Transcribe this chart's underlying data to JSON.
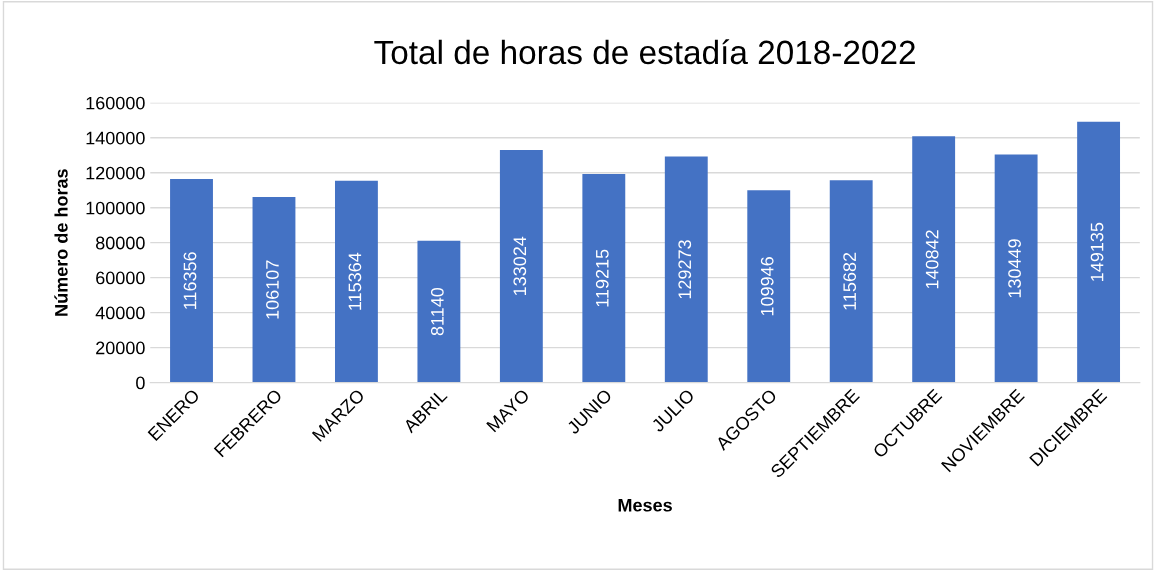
{
  "chart_data": {
    "type": "bar",
    "title": "Total de horas de estadía 2018-2022",
    "xlabel": "Meses",
    "ylabel": "Número de horas",
    "categories": [
      "ENERO",
      "FEBRERO",
      "MARZO",
      "ABRIL",
      "MAYO",
      "JUNIO",
      "JULIO",
      "AGOSTO",
      "SEPTIEMBRE",
      "OCTUBRE",
      "NOVIEMBRE",
      "DICIEMBRE"
    ],
    "values": [
      116356,
      106107,
      115364,
      81140,
      133024,
      119215,
      129273,
      109946,
      115682,
      140842,
      130449,
      149135
    ],
    "color": "#4472c4",
    "ylim": [
      0,
      160000
    ],
    "yticks": [
      0,
      20000,
      40000,
      60000,
      80000,
      100000,
      120000,
      140000,
      160000
    ],
    "grid": "y",
    "data_labels": true
  }
}
